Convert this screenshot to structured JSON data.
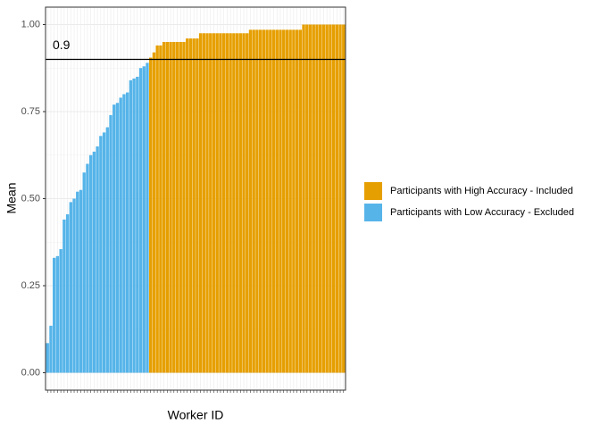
{
  "chart_data": {
    "type": "bar",
    "x_label": "Worker ID",
    "y_label": "Mean",
    "categories": [
      null,
      null,
      null,
      null,
      null,
      null,
      null,
      null,
      null,
      null,
      null,
      null,
      null,
      null,
      null,
      null,
      null,
      null,
      null,
      null,
      null,
      null,
      null,
      null,
      null,
      null,
      null,
      null,
      null,
      null,
      null,
      null,
      null,
      null,
      null,
      null,
      null,
      null,
      null,
      null,
      null,
      null,
      null,
      null,
      null,
      null,
      null,
      null,
      null,
      null,
      null,
      null,
      null,
      null,
      null,
      null,
      null,
      null,
      null,
      null,
      null,
      null,
      null,
      null,
      null,
      null,
      null,
      null,
      null,
      null,
      null,
      null,
      null,
      null,
      null,
      null,
      null,
      null,
      null,
      null,
      null,
      null,
      null,
      null,
      null,
      null,
      null,
      null,
      null,
      null
    ],
    "series": [
      {
        "name": "Participants with High Accuracy - Included",
        "color": "#E69F00",
        "values": [
          null,
          null,
          null,
          null,
          null,
          null,
          null,
          null,
          null,
          null,
          null,
          null,
          null,
          null,
          null,
          null,
          null,
          null,
          null,
          null,
          null,
          null,
          null,
          null,
          null,
          null,
          null,
          null,
          null,
          null,
          null,
          0.905,
          0.92,
          0.94,
          0.94,
          0.95,
          0.95,
          0.95,
          0.95,
          0.95,
          0.95,
          0.95,
          0.96,
          0.96,
          0.96,
          0.96,
          0.975,
          0.975,
          0.975,
          0.975,
          0.975,
          0.975,
          0.975,
          0.975,
          0.975,
          0.975,
          0.975,
          0.975,
          0.975,
          0.975,
          0.975,
          0.985,
          0.985,
          0.985,
          0.985,
          0.985,
          0.985,
          0.985,
          0.985,
          0.985,
          0.985,
          0.985,
          0.985,
          0.985,
          0.985,
          0.985,
          0.985,
          1,
          1,
          1,
          1,
          1,
          1,
          1,
          1,
          1,
          1,
          1,
          1,
          1
        ]
      },
      {
        "name": "Participants with Low Accuracy - Excluded",
        "color": "#56B4E9",
        "values": [
          0.085,
          0.135,
          0.33,
          0.335,
          0.355,
          0.44,
          0.455,
          0.49,
          0.5,
          0.52,
          0.525,
          0.575,
          0.6,
          0.625,
          0.635,
          0.65,
          0.68,
          0.69,
          0.705,
          0.74,
          0.77,
          0.775,
          0.79,
          0.8,
          0.805,
          0.84,
          0.845,
          0.85,
          0.875,
          0.88,
          0.89,
          null,
          null,
          null,
          null,
          null,
          null,
          null,
          null,
          null,
          null,
          null,
          null,
          null,
          null,
          null,
          null,
          null,
          null,
          null,
          null,
          null,
          null,
          null,
          null,
          null,
          null,
          null,
          null,
          null,
          null,
          null,
          null,
          null,
          null,
          null,
          null,
          null,
          null,
          null,
          null,
          null,
          null,
          null,
          null,
          null,
          null,
          null,
          null,
          null,
          null,
          null,
          null,
          null,
          null,
          null,
          null,
          null,
          null,
          null
        ]
      }
    ],
    "ylim": [
      -0.05,
      1.05
    ],
    "yticks": [
      {
        "value": 0,
        "label": "0.00"
      },
      {
        "value": 0.25,
        "label": "0.25"
      },
      {
        "value": 0.5,
        "label": "0.50"
      },
      {
        "value": 0.75,
        "label": "0.75"
      },
      {
        "value": 1,
        "label": "1.00"
      }
    ],
    "hline": 0.9,
    "hline_label": "0.9",
    "grid": true,
    "legend": "right"
  }
}
